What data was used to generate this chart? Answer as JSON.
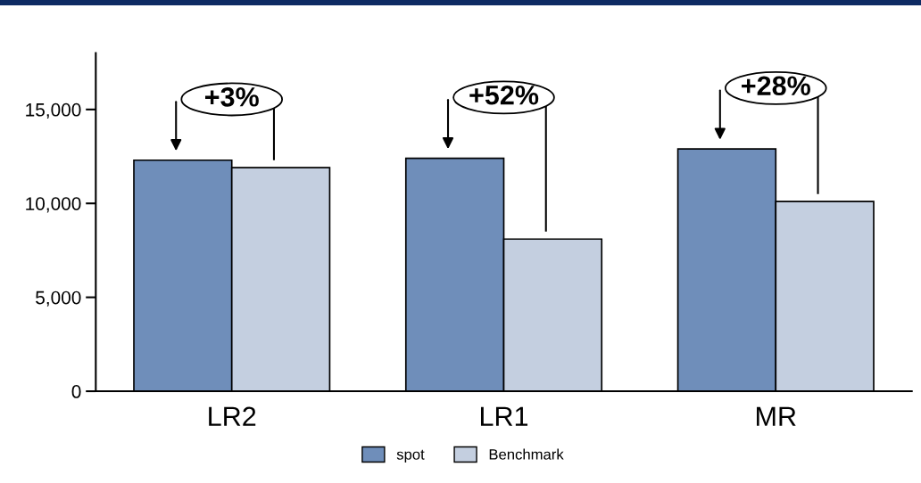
{
  "chart_data": {
    "type": "bar",
    "categories": [
      "LR2",
      "LR1",
      "MR"
    ],
    "series": [
      {
        "name": "spot",
        "color": "#6f8eba",
        "values": [
          12300,
          12400,
          12900
        ]
      },
      {
        "name": "Benchmark",
        "color": "#c4cfe0",
        "values": [
          11900,
          8100,
          10100
        ]
      }
    ],
    "ylim": [
      0,
      18000
    ],
    "yticks": [
      0,
      {
        "value": 5000,
        "label": "5,000"
      },
      {
        "value": 10000,
        "label": "10,000"
      },
      {
        "value": 15000,
        "label": "15,000"
      }
    ],
    "annotations": [
      "+3%",
      "+52%",
      "+28%"
    ],
    "grid": false,
    "legend": "bottom"
  }
}
